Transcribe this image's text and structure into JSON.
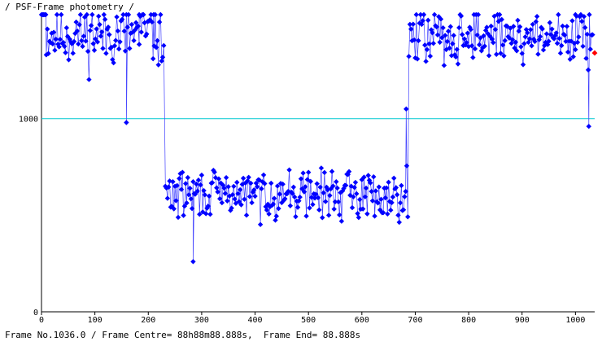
{
  "window": {
    "title": "/ PSF-Frame photometry /",
    "status": {
      "prefix": "Frame No.",
      "frame_no": "1036.0",
      "centre_label": "Frame Centre=",
      "centre_value": "88h88m88.888s",
      "end_label": "Frame End=",
      "end_value": "88.888s"
    }
  },
  "colors": {
    "series": "#0000ff",
    "series_line": "#4040ff",
    "reference_line": "#00c8d0",
    "current_point": "#ff0000",
    "axis": "#000000"
  },
  "chart_data": {
    "type": "scatter",
    "title": "/ PSF-Frame photometry /",
    "xlabel": "",
    "ylabel": "",
    "xlim": [
      0,
      1036
    ],
    "ylim": [
      0,
      1530
    ],
    "x_ticks": [
      0,
      100,
      200,
      300,
      400,
      500,
      600,
      700,
      800,
      900,
      1000
    ],
    "y_ticks": [
      0,
      1000
    ],
    "reference_line": {
      "y": 1000
    },
    "grid": false,
    "legend": "none",
    "current_point": {
      "x": 1036,
      "y": 1340
    },
    "segments": [
      {
        "x_start": 0,
        "x_end": 8,
        "mean": 1740,
        "amp": 2,
        "seed": 3
      },
      {
        "x_start": 9,
        "x_end": 230,
        "mean": 1440,
        "amp": 260,
        "seed": 11
      },
      {
        "x_start": 232,
        "x_end": 686,
        "mean": 610,
        "amp": 180,
        "seed": 29
      },
      {
        "x_start": 688,
        "x_end": 1033,
        "mean": 1430,
        "amp": 230,
        "seed": 47
      }
    ],
    "key_points": [
      {
        "x": 183,
        "y": 2040
      },
      {
        "x": 159,
        "y": 980
      },
      {
        "x": 210,
        "y": 1750
      },
      {
        "x": 284,
        "y": 260
      },
      {
        "x": 683,
        "y": 1050
      },
      {
        "x": 1000,
        "y": 2020
      },
      {
        "x": 1025,
        "y": 960
      }
    ]
  }
}
